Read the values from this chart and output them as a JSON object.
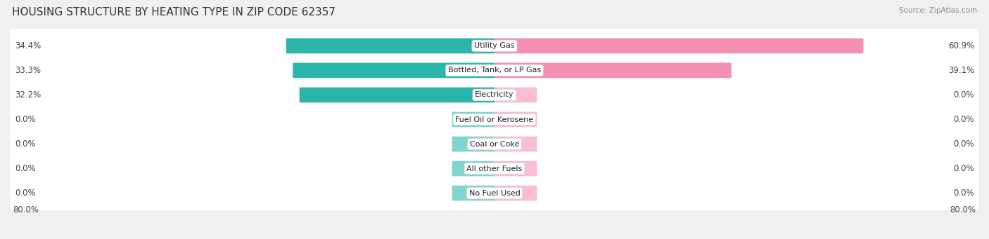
{
  "title": "HOUSING STRUCTURE BY HEATING TYPE IN ZIP CODE 62357",
  "source": "Source: ZipAtlas.com",
  "categories": [
    "Utility Gas",
    "Bottled, Tank, or LP Gas",
    "Electricity",
    "Fuel Oil or Kerosene",
    "Coal or Coke",
    "All other Fuels",
    "No Fuel Used"
  ],
  "owner_values": [
    34.4,
    33.3,
    32.2,
    0.0,
    0.0,
    0.0,
    0.0
  ],
  "renter_values": [
    60.9,
    39.1,
    0.0,
    0.0,
    0.0,
    0.0,
    0.0
  ],
  "owner_color": "#2bb5aa",
  "renter_color": "#f48fb1",
  "owner_color_light": "#82d4cf",
  "renter_color_light": "#f9bdd4",
  "axis_left_label": "80.0%",
  "axis_right_label": "80.0%",
  "xlim": 80.0,
  "stub_size": 7.0,
  "background_color": "#f0f0f0",
  "row_bg_color": "#ffffff",
  "title_fontsize": 11,
  "bar_height": 0.62,
  "value_fontsize": 8.5,
  "label_fontsize": 8.0
}
